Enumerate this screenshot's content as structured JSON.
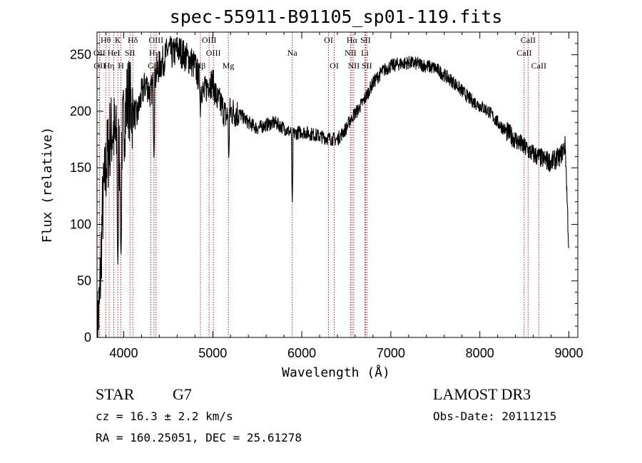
{
  "chart_data": {
    "type": "line",
    "title": "spec-55911-B91105_sp01-119.fits",
    "xlabel": "Wavelength (Å)",
    "ylabel": "Flux (relative)",
    "xlim": [
      3700,
      9100
    ],
    "ylim": [
      0,
      270
    ],
    "xticks": [
      4000,
      5000,
      6000,
      7000,
      8000,
      9000
    ],
    "yticks": [
      0,
      50,
      100,
      150,
      200,
      250
    ],
    "x_tick_labels": [
      "4000",
      "5000",
      "6000",
      "7000",
      "8000",
      "9000"
    ],
    "y_tick_labels": [
      "0",
      "50",
      "100",
      "150",
      "200",
      "250"
    ],
    "grid": false,
    "continuum_x": [
      3700,
      3730,
      3760,
      3800,
      3840,
      3880,
      3920,
      3960,
      4000,
      4050,
      4100,
      4150,
      4200,
      4250,
      4300,
      4350,
      4400,
      4450,
      4500,
      4550,
      4600,
      4650,
      4700,
      4750,
      4800,
      4860,
      4900,
      4950,
      5000,
      5050,
      5100,
      5150,
      5200,
      5300,
      5400,
      5500,
      5600,
      5700,
      5800,
      5900,
      6000,
      6100,
      6200,
      6300,
      6400,
      6500,
      6560,
      6620,
      6700,
      6800,
      6900,
      7000,
      7100,
      7200,
      7300,
      7400,
      7500,
      7600,
      7700,
      7800,
      7900,
      8000,
      8100,
      8200,
      8300,
      8400,
      8500,
      8600,
      8700,
      8800,
      8900,
      8960,
      9000
    ],
    "continuum_y": [
      5,
      30,
      110,
      150,
      175,
      185,
      170,
      160,
      190,
      215,
      200,
      195,
      215,
      225,
      215,
      230,
      240,
      245,
      255,
      250,
      255,
      252,
      248,
      245,
      240,
      225,
      215,
      225,
      225,
      210,
      205,
      195,
      200,
      198,
      190,
      185,
      188,
      190,
      185,
      180,
      182,
      180,
      178,
      176,
      175,
      185,
      195,
      200,
      210,
      225,
      235,
      240,
      242,
      243,
      242,
      240,
      238,
      232,
      226,
      218,
      210,
      205,
      200,
      190,
      182,
      175,
      168,
      162,
      158,
      155,
      160,
      170,
      75
    ],
    "noise_seed": 7,
    "absorption_dips": [
      {
        "x": 3934,
        "y": 65
      },
      {
        "x": 3969,
        "y": 70
      },
      {
        "x": 4340,
        "y": 155
      },
      {
        "x": 4861,
        "y": 195
      },
      {
        "x": 5180,
        "y": 155
      },
      {
        "x": 5893,
        "y": 120
      },
      {
        "x": 6563,
        "y": 190
      }
    ],
    "lines": [
      {
        "label": "Hθ",
        "x": 3798,
        "row": 0
      },
      {
        "label": "OII",
        "x": 3727,
        "row": 1
      },
      {
        "label": "OII",
        "x": 3730,
        "row": 2
      },
      {
        "label": "Hη",
        "x": 3836,
        "row": 2
      },
      {
        "label": "K",
        "x": 3934,
        "row": 0
      },
      {
        "label": "HeI",
        "x": 3889,
        "row": 1
      },
      {
        "label": "H",
        "x": 3969,
        "row": 2
      },
      {
        "label": "Hδ",
        "x": 4102,
        "row": 0
      },
      {
        "label": "SII",
        "x": 4070,
        "row": 1
      },
      {
        "label": "OIII",
        "x": 4363,
        "row": 0
      },
      {
        "label": "Hγ",
        "x": 4340,
        "row": 1
      },
      {
        "label": "G",
        "x": 4305,
        "row": 2
      },
      {
        "label": "OIII",
        "x": 4959,
        "row": 0
      },
      {
        "label": "OIII",
        "x": 5007,
        "row": 1
      },
      {
        "label": "Hβ",
        "x": 4861,
        "row": 2
      },
      {
        "label": "Mg",
        "x": 5175,
        "row": 2
      },
      {
        "label": "Na",
        "x": 5893,
        "row": 1
      },
      {
        "label": "OI",
        "x": 6300,
        "row": 0
      },
      {
        "label": "OI",
        "x": 6364,
        "row": 2
      },
      {
        "label": "Hα",
        "x": 6563,
        "row": 0
      },
      {
        "label": "SII",
        "x": 6716,
        "row": 0
      },
      {
        "label": "NII",
        "x": 6548,
        "row": 1
      },
      {
        "label": "Li",
        "x": 6708,
        "row": 1
      },
      {
        "label": "NII",
        "x": 6583,
        "row": 2
      },
      {
        "label": "SII",
        "x": 6731,
        "row": 2
      },
      {
        "label": "CaII",
        "x": 8542,
        "row": 0
      },
      {
        "label": "CaII",
        "x": 8498,
        "row": 1
      },
      {
        "label": "CaII",
        "x": 8662,
        "row": 2
      }
    ],
    "colors": {
      "spectrum": "#000000",
      "lines": "#b22222",
      "axes": "#000000"
    }
  },
  "footer": {
    "object_class": "STAR",
    "subclass": "G7",
    "survey": "LAMOST DR3",
    "cz": "cz = 16.3 ± 2.2 km/s",
    "obs_date": "Obs-Date: 20111215",
    "radec": "RA = 160.25051, DEC =  25.61278"
  }
}
